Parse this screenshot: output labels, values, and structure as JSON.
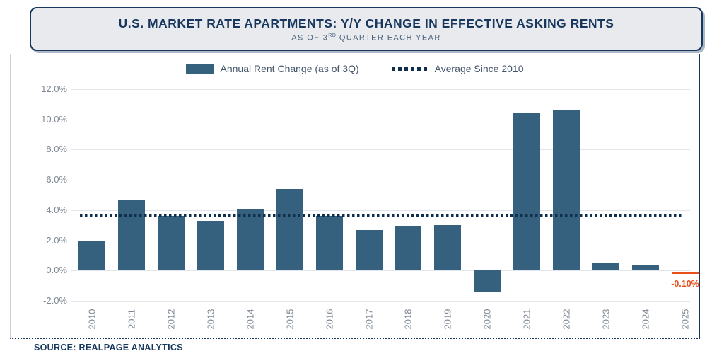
{
  "header": {
    "title": "U.S. MARKET RATE APARTMENTS: Y/Y CHANGE IN EFFECTIVE ASKING RENTS",
    "subtitle_prefix": "AS OF 3",
    "subtitle_sup": "RD",
    "subtitle_suffix": " QUARTER EACH YEAR"
  },
  "legend": {
    "series_label": "Annual Rent Change (as of 3Q)",
    "average_label": "Average Since 2010"
  },
  "source": "SOURCE: REALPAGE ANALYTICS",
  "colors": {
    "bar": "#35617e",
    "average_dotted_line": "#0e2f4e",
    "negative_marker": "#e8501e",
    "navy_accent": "#17375e",
    "axis_text": "#7e8894",
    "legend_text": "#44546a",
    "gridline": "#e2e6eb",
    "header_background": "#e9eaee"
  },
  "chart_data": {
    "type": "bar",
    "title": "U.S. MARKET RATE APARTMENTS: Y/Y CHANGE IN EFFECTIVE ASKING RENTS",
    "subtitle": "AS OF 3RD QUARTER EACH YEAR",
    "categories": [
      "2010",
      "2011",
      "2012",
      "2013",
      "2014",
      "2015",
      "2016",
      "2017",
      "2018",
      "2019",
      "2020",
      "2021",
      "2022",
      "2023",
      "2024",
      "2025"
    ],
    "values": [
      2.0,
      4.7,
      3.6,
      3.3,
      4.1,
      5.4,
      3.6,
      2.7,
      2.9,
      3.0,
      -1.4,
      10.4,
      10.6,
      0.5,
      0.4,
      -0.1
    ],
    "unit": "%",
    "series_name": "Annual Rent Change (as of 3Q)",
    "average_since_2010": 3.7,
    "average_line_name": "Average Since 2010",
    "highlight": {
      "year": "2025",
      "value": -0.1,
      "label": "-0.10%",
      "color": "#e8501e"
    },
    "ylim": [
      -2,
      12
    ],
    "yticks": [
      {
        "label": "12.0%",
        "value": 12
      },
      {
        "label": "10.0%",
        "value": 10
      },
      {
        "label": "8.0%",
        "value": 8
      },
      {
        "label": "6.0%",
        "value": 6
      },
      {
        "label": "4.0%",
        "value": 4
      },
      {
        "label": "2.0%",
        "value": 2
      },
      {
        "label": "0.0%",
        "value": 0
      },
      {
        "label": "-2.0%",
        "value": -2
      }
    ],
    "grid": "horizontal",
    "legend_position": "top",
    "xlabel": "",
    "ylabel": ""
  }
}
